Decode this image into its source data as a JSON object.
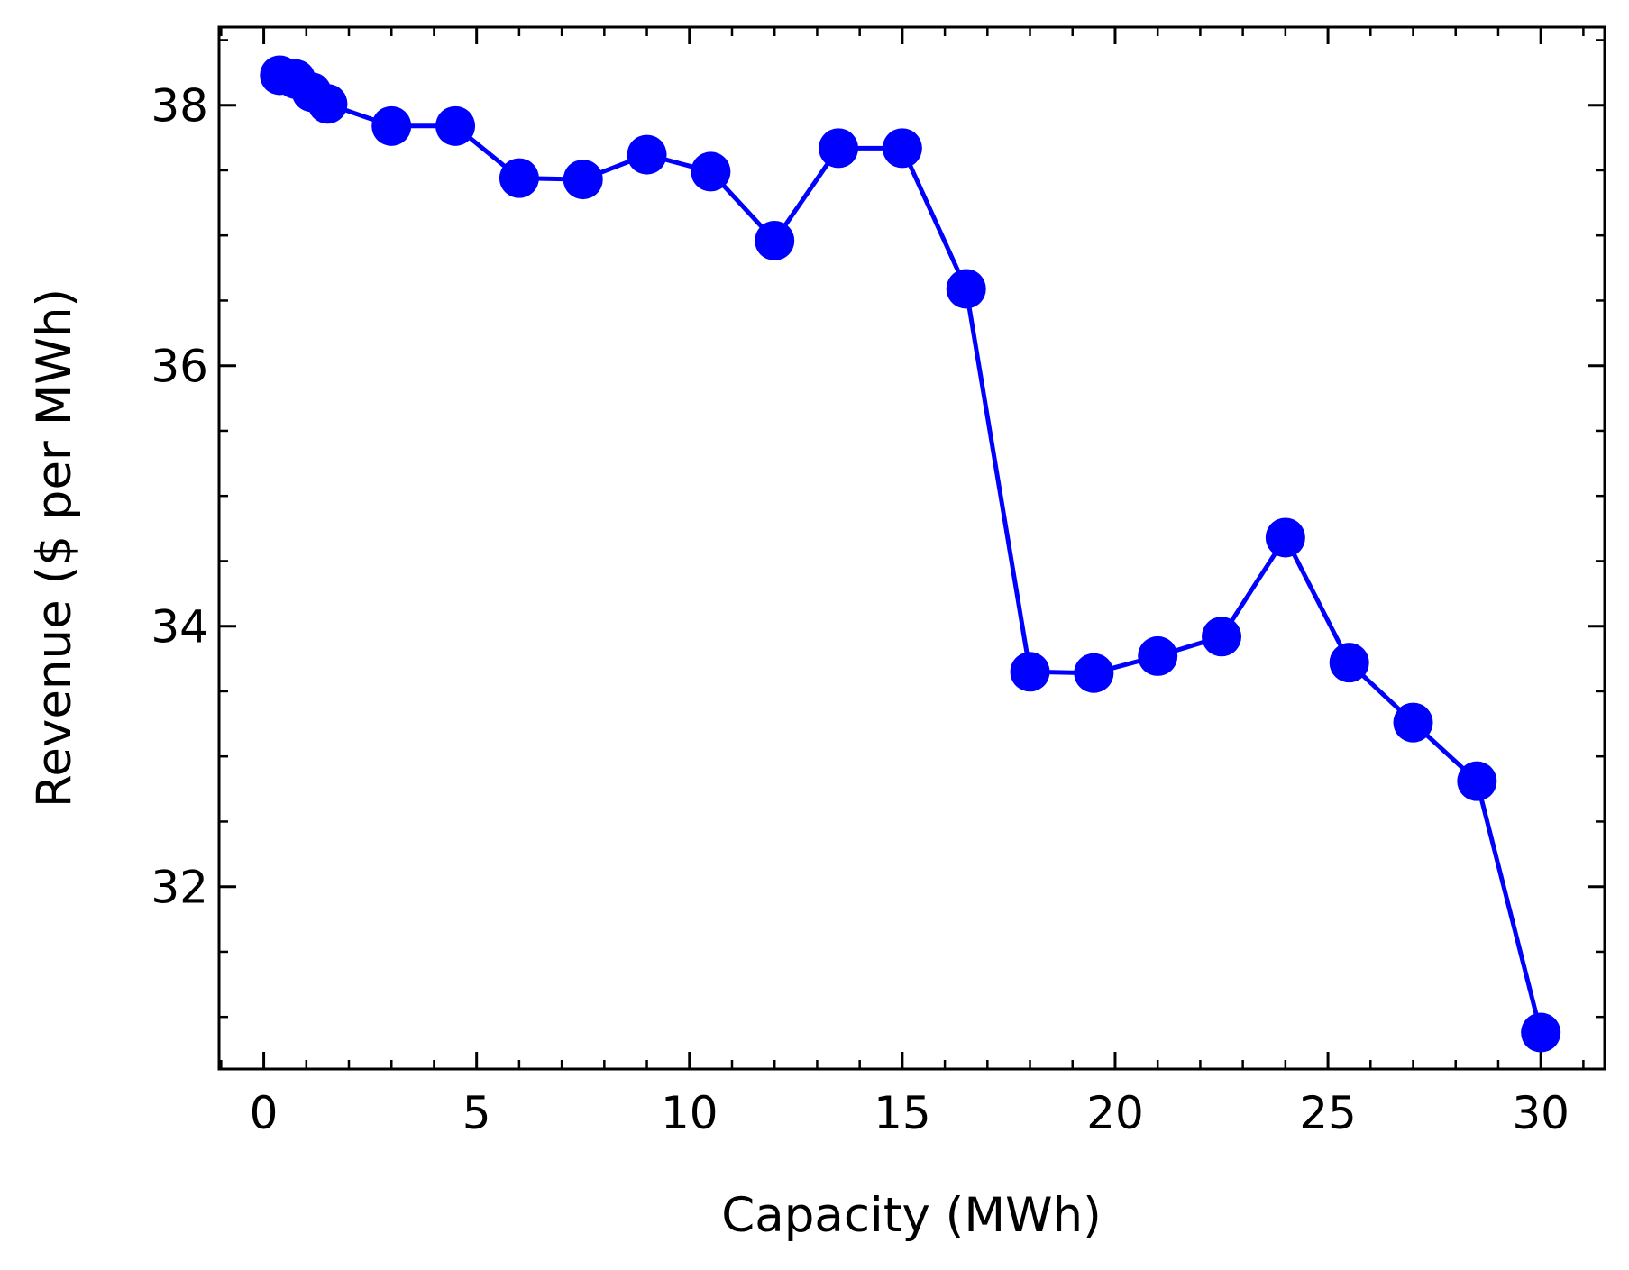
{
  "chart_data": {
    "type": "line",
    "xlabel": "Capacity (MWh)",
    "ylabel": "Revenue ($ per MWh)",
    "xlim": [
      -1.05,
      31.5
    ],
    "ylim": [
      30.6,
      38.6
    ],
    "x_ticks": [
      0,
      5,
      10,
      15,
      20,
      25,
      30
    ],
    "y_ticks": [
      32,
      34,
      36,
      38
    ],
    "x_minor_step": 1,
    "y_minor_step": 0.5,
    "ticks_direction": "in",
    "grid": false,
    "legend": "none",
    "series": [
      {
        "color": "#0000ff",
        "marker": "circle",
        "x": [
          0.375,
          0.75,
          1.125,
          1.5,
          3,
          4.5,
          6,
          7.5,
          9,
          10.5,
          12,
          13.5,
          15,
          16.5,
          18,
          19.5,
          21,
          22.5,
          24,
          25.5,
          27,
          28.5,
          30
        ],
        "y": [
          38.23,
          38.2,
          38.1,
          38.01,
          37.84,
          37.84,
          37.44,
          37.43,
          37.62,
          37.49,
          36.96,
          37.67,
          37.67,
          36.59,
          33.65,
          33.64,
          33.77,
          33.92,
          34.68,
          33.72,
          33.26,
          32.81,
          30.88
        ]
      }
    ]
  }
}
